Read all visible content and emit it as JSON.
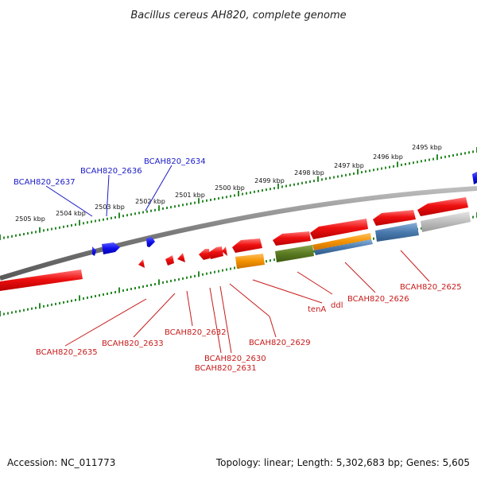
{
  "title": "Bacillus cereus AH820, complete genome",
  "footer": {
    "accession": "Accession: NC_011773",
    "summary": "Topology: linear; Length: 5,302,683 bp; Genes: 5,605"
  },
  "colors": {
    "backbone": "#8a8a8a",
    "tick": "#2a8a2a",
    "forward_label": "#1a1ac8",
    "reverse_label": "#c81a1a"
  },
  "kbp_labels": [
    "2505 kbp",
    "2504 kbp",
    "2503 kbp",
    "2502 kbp",
    "2501 kbp",
    "2500 kbp",
    "2499 kbp",
    "2498 kbp",
    "2497 kbp",
    "2496 kbp",
    "2495 kbp"
  ],
  "forward_genes": [
    "BCAH820_2637",
    "BCAH820_2636",
    "BCAH820_2634"
  ],
  "reverse_genes": [
    "BCAH820_2635",
    "BCAH820_2633",
    "BCAH820_2632",
    "BCAH820_2630",
    "BCAH820_2631",
    "BCAH820_2629",
    "tenA",
    "ddl",
    "BCAH820_2626",
    "BCAH820_2625"
  ]
}
